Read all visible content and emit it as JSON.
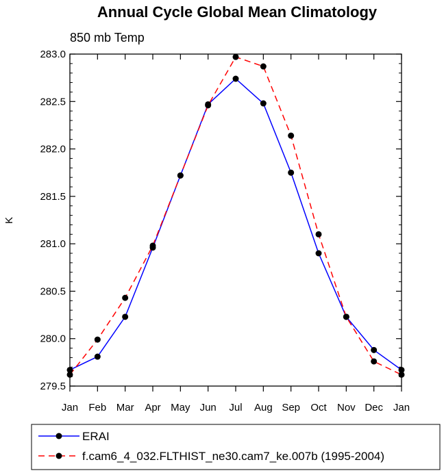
{
  "chart_data": {
    "type": "line",
    "title": "Annual Cycle Global Mean Climatology",
    "subtitle": "850 mb Temp",
    "xlabel": "",
    "ylabel": "K",
    "categories": [
      "Jan",
      "Feb",
      "Mar",
      "Apr",
      "May",
      "Jun",
      "Jul",
      "Aug",
      "Sep",
      "Oct",
      "Nov",
      "Dec",
      "Jan"
    ],
    "ylim": [
      279.5,
      283.0
    ],
    "yticks": [
      "279.5",
      "280.0",
      "280.5",
      "281.0",
      "281.5",
      "282.0",
      "282.5",
      "283.0"
    ],
    "grid": false,
    "legend_position": "bottom",
    "series": [
      {
        "name": "ERAI",
        "color": "#0000ff",
        "dash": "solid",
        "marker": "circle",
        "values": [
          279.67,
          279.81,
          280.23,
          280.96,
          281.72,
          282.47,
          282.74,
          282.48,
          281.75,
          280.9,
          280.23,
          279.88,
          279.67
        ]
      },
      {
        "name": "f.cam6_4_032.FLTHIST_ne30.cam7_ke.007b (1995-2004)",
        "color": "#ff0000",
        "dash": "dashed",
        "marker": "circle",
        "values": [
          279.62,
          279.99,
          280.43,
          280.98,
          281.72,
          282.46,
          282.97,
          282.87,
          282.14,
          281.1,
          280.23,
          279.76,
          279.62
        ]
      }
    ]
  }
}
